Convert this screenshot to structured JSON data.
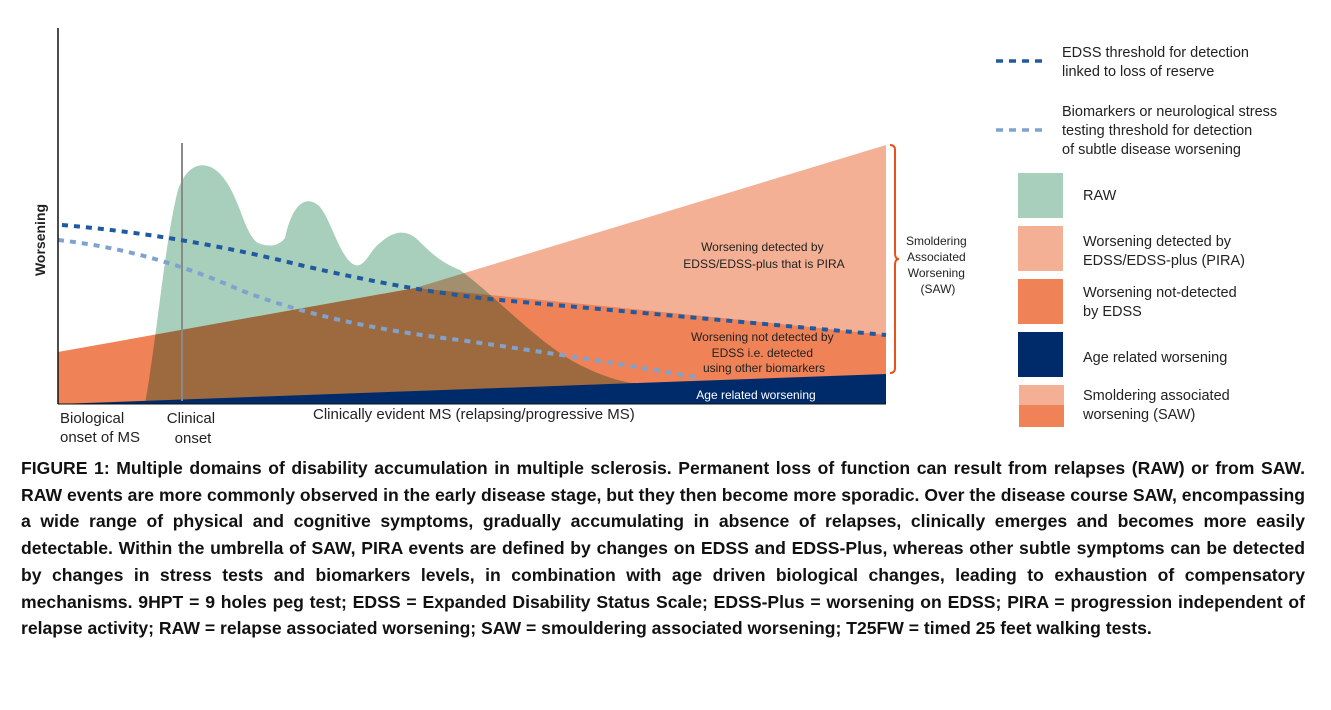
{
  "figure": {
    "y_axis_label": "Worsening",
    "x_labels": {
      "biological_onset": [
        "Biological",
        "onset of MS"
      ],
      "clinical_onset": [
        "Clinical",
        "onset"
      ],
      "clinically_evident": "Clinically evident MS (relapsing/progressive MS)"
    },
    "region_labels": {
      "pira": [
        "Worsening detected by",
        "EDSS/EDSS-plus that is PIRA"
      ],
      "not_detected": [
        "Worsening not detected by",
        "EDSS i.e. detected",
        "using other biomarkers"
      ],
      "age": "Age related worsening"
    },
    "bracket_label": [
      "Smoldering",
      "Associated",
      "Worsening",
      "(SAW)"
    ],
    "colors": {
      "raw": "#a8cfbb",
      "pira": "#f4b094",
      "not_detected": "#ef8256",
      "age": "#002b6b",
      "edss_line": "#1f5aa0",
      "biomarker_line": "#7fa3cc",
      "bracket": "#e8501c"
    },
    "legend": {
      "lines": [
        {
          "label": [
            "EDSS threshold for detection",
            "linked to loss of reserve"
          ],
          "style": "dark-blue-dashed"
        },
        {
          "label": [
            "Biomarkers or neurological stress",
            "testing threshold for detection",
            "of subtle disease worsening"
          ],
          "style": "light-blue-dashed"
        }
      ],
      "swatches": [
        {
          "label": [
            "RAW"
          ]
        },
        {
          "label": [
            "Worsening detected by",
            "EDSS/EDSS-plus (PIRA)"
          ]
        },
        {
          "label": [
            "Worsening not-detected",
            "by EDSS"
          ]
        },
        {
          "label": [
            "Age related worsening"
          ]
        },
        {
          "label": [
            "Smoldering associated",
            "worsening (SAW)"
          ]
        }
      ]
    }
  },
  "caption": "FIGURE 1: Multiple domains of disability accumulation in multiple sclerosis. Permanent loss of function can result from relapses (RAW) or from SAW. RAW events are more commonly observed in the early disease stage, but they then become more sporadic. Over the disease course SAW, encompassing a wide range of physical and cognitive symptoms, gradually accumulating in absence of relapses, clinically emerges and becomes more easily detectable. Within the umbrella of SAW, PIRA events are defined by changes on EDSS and EDSS-Plus, whereas other subtle symptoms can be detected by changes in stress tests and biomarkers levels, in combination with age driven biological changes, leading to exhaustion of compensatory mechanisms. 9HPT = 9 holes peg test; EDSS = Expanded Disability Status Scale; EDSS-Plus = worsening on EDSS; PIRA = progression independent of relapse activity; RAW = relapse associated worsening; SAW = smouldering associated worsening; T25FW = timed 25 feet walking tests."
}
